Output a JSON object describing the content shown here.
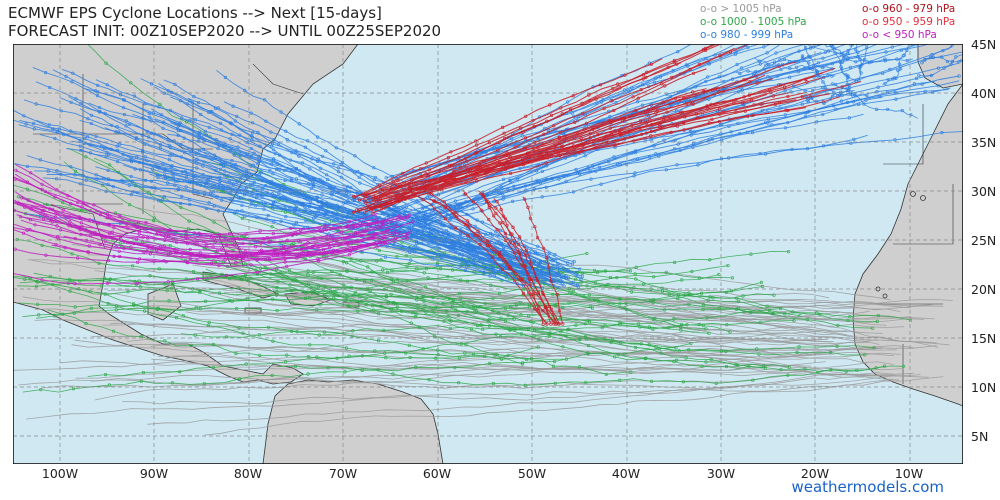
{
  "title": {
    "line1": "ECMWF EPS Cyclone Locations --> Next [15-days]",
    "line2": "FORECAST INIT: 00Z10SEP2020 --> UNTIL 00Z25SEP2020"
  },
  "legend": [
    {
      "marker": "o-o",
      "label": "> 1005 hPa",
      "color": "#9a9a9a"
    },
    {
      "marker": "o-o",
      "label": "1000 - 1005 hPa",
      "color": "#2fa84a"
    },
    {
      "marker": "o-o",
      "label": "980 - 999 hPa",
      "color": "#2f7fe0"
    },
    {
      "marker": "o-o",
      "label": "960 - 979 hPa",
      "color": "#b0121a"
    },
    {
      "marker": "o-o",
      "label": "950 - 959 hPa",
      "color": "#e0303a"
    },
    {
      "marker": "o-o",
      "label": "< 950 hPa",
      "color": "#c020c0"
    }
  ],
  "lat_labels": [
    "45N",
    "40N",
    "35N",
    "30N",
    "25N",
    "20N",
    "15N",
    "10N",
    "5N"
  ],
  "lon_labels": [
    "100W",
    "90W",
    "80W",
    "70W",
    "60W",
    "50W",
    "40W",
    "30W",
    "20W",
    "10W"
  ],
  "credit": "weathermodels.com",
  "colors": {
    "ocean": "#cfe8f2",
    "land": "#cfcfcf",
    "border": "#222222",
    "grid": "#8a8a8a"
  }
}
